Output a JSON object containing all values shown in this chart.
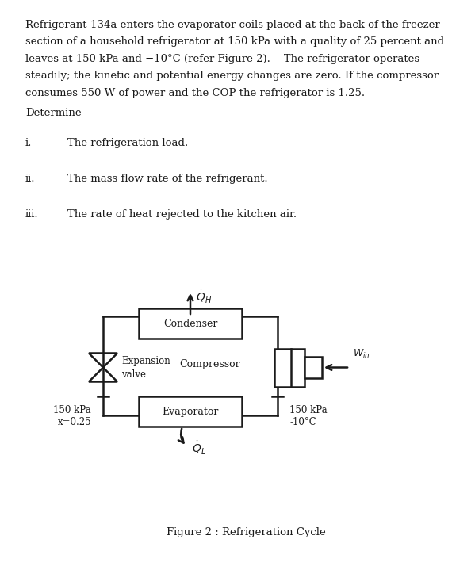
{
  "bg_color": "#ffffff",
  "text_color": "#1a1a1a",
  "paragraph_lines": [
    "Refrigerant-134a enters the evaporator coils placed at the back of the freezer",
    "section of a household refrigerator at 150 kPa with a quality of 25 percent and",
    "leaves at 150 kPa and −10°C (refer Figure 2).    The refrigerator operates",
    "steadily; the kinetic and potential energy changes are zero. If the compressor",
    "consumes 550 W of power and the COP the refrigerator is 1.25."
  ],
  "determine": "Determine",
  "items": [
    [
      "i.",
      "The refrigeration load."
    ],
    [
      "ii.",
      "The mass flow rate of the refrigerant."
    ],
    [
      "iii.",
      "The rate of heat rejected to the kitchen air."
    ]
  ],
  "figure_caption": "Figure 2 : Refrigeration Cycle",
  "label_left_1": "150 kPa",
  "label_left_2": "x=0.25",
  "label_right_1": "150 kPa",
  "label_right_2": "-10°C",
  "condenser_label": "Condenser",
  "evaporator_label": "Evaporator",
  "compressor_label": "Compressor",
  "expansion_label_1": "Expansion",
  "expansion_label_2": "valve",
  "win_label": "$\\dot{W}_{in}$",
  "qh_label": "$\\dot{Q}_H$",
  "ql_label": "$\\dot{Q}_L$"
}
